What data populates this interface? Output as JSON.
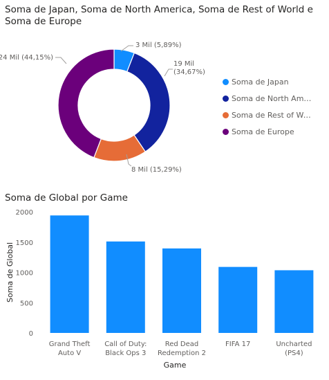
{
  "chart_data": [
    {
      "type": "pie",
      "variant": "donut",
      "title": "Soma de Japan, Soma de North America, Soma de Rest of World e Soma de Europe",
      "title_lines": [
        "Soma de Japan, Soma de North America, Soma de Rest of World e",
        "Soma de Europe"
      ],
      "legend_position": "right",
      "slices": [
        {
          "name": "Soma de Japan",
          "legend_label": "Soma de Japan",
          "percent": 5.89,
          "label_lines": [
            "3 Mil (5,89%)"
          ],
          "color": "#118DFF"
        },
        {
          "name": "Soma de North America",
          "legend_label": "Soma de North Ame...",
          "percent": 34.67,
          "label_lines": [
            "19 Mil",
            "(34,67%)"
          ],
          "color": "#12239E"
        },
        {
          "name": "Soma de Rest of World",
          "legend_label": "Soma de Rest of Wo...",
          "percent": 15.29,
          "label_lines": [
            "8 Mil (15,29%)"
          ],
          "color": "#E66C37"
        },
        {
          "name": "Soma de Europe",
          "legend_label": "Soma de Europe",
          "percent": 44.15,
          "label_lines": [
            "24 Mil (44,15%)"
          ],
          "color": "#6B007B"
        }
      ]
    },
    {
      "type": "bar",
      "title": "Soma de Global por Game",
      "xlabel": "Game",
      "ylabel": "Soma de Global",
      "ylim": [
        0,
        2000
      ],
      "yticks": [
        0,
        500,
        1000,
        1500,
        2000
      ],
      "grid": false,
      "bar_color": "#118DFF",
      "categories": [
        [
          "Grand Theft",
          "Auto V"
        ],
        [
          "Call of Duty:",
          "Black Ops 3"
        ],
        [
          "Red Dead",
          "Redemption 2"
        ],
        [
          "FIFA 17"
        ],
        [
          "Uncharted",
          "(PS4)"
        ]
      ],
      "values": [
        1940,
        1510,
        1395,
        1090,
        1035
      ]
    }
  ]
}
